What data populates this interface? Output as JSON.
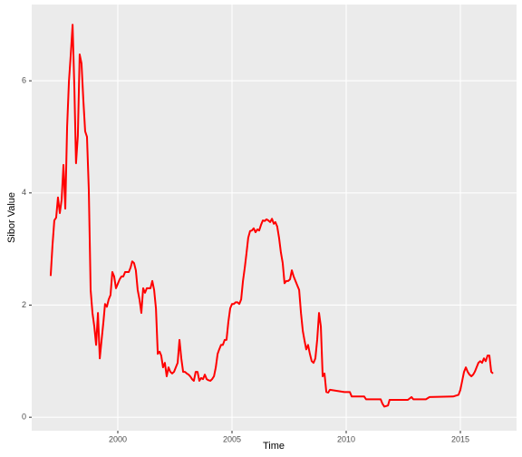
{
  "chart_data": {
    "type": "line",
    "xlabel": "Time",
    "ylabel": "Sibor Value",
    "x": [
      1997.06,
      1997.14,
      1997.22,
      1997.3,
      1997.38,
      1997.46,
      1997.54,
      1997.62,
      1997.7,
      1997.78,
      1997.86,
      1997.94,
      1998.02,
      1998.1,
      1998.17,
      1998.25,
      1998.33,
      1998.41,
      1998.49,
      1998.57,
      1998.65,
      1998.73,
      1998.81,
      1998.89,
      1998.97,
      1999.05,
      1999.13,
      1999.21,
      1999.29,
      1999.37,
      1999.44,
      1999.52,
      1999.6,
      1999.68,
      1999.76,
      1999.84,
      1999.92,
      2000.0,
      2000.08,
      2000.16,
      2000.24,
      2000.32,
      2000.4,
      2000.48,
      2000.56,
      2000.63,
      2000.71,
      2000.79,
      2000.87,
      2000.95,
      2001.03,
      2001.11,
      2001.19,
      2001.27,
      2001.35,
      2001.43,
      2001.51,
      2001.59,
      2001.67,
      2001.75,
      2001.83,
      2001.9,
      2001.98,
      2002.06,
      2002.14,
      2002.22,
      2002.3,
      2002.38,
      2002.46,
      2002.54,
      2002.62,
      2002.7,
      2002.78,
      2002.86,
      2002.94,
      2003.02,
      2003.1,
      2003.17,
      2003.25,
      2003.33,
      2003.41,
      2003.49,
      2003.57,
      2003.65,
      2003.73,
      2003.81,
      2003.89,
      2003.97,
      2004.05,
      2004.13,
      2004.21,
      2004.29,
      2004.37,
      2004.44,
      2004.52,
      2004.6,
      2004.68,
      2004.76,
      2004.84,
      2004.92,
      2005.0,
      2005.08,
      2005.16,
      2005.24,
      2005.32,
      2005.4,
      2005.48,
      2005.56,
      2005.63,
      2005.71,
      2005.79,
      2005.87,
      2005.95,
      2006.03,
      2006.11,
      2006.19,
      2006.27,
      2006.35,
      2006.43,
      2006.51,
      2006.59,
      2006.67,
      2006.75,
      2006.83,
      2006.9,
      2006.98,
      2007.06,
      2007.14,
      2007.22,
      2007.3,
      2007.38,
      2007.46,
      2007.54,
      2007.62,
      2007.7,
      2007.78,
      2007.86,
      2007.94,
      2008.02,
      2008.1,
      2008.17,
      2008.25,
      2008.33,
      2008.41,
      2008.49,
      2008.57,
      2008.65,
      2008.73,
      2008.81,
      2008.89,
      2008.97,
      2009.05,
      2009.13,
      2009.21,
      2009.29,
      2009.92,
      2010.16,
      2010.24,
      2010.79,
      2010.87,
      2011.51,
      2011.59,
      2011.67,
      2011.83,
      2011.9,
      2012.7,
      2012.86,
      2012.94,
      2013.49,
      2013.65,
      2014.68,
      2014.92,
      2015.0,
      2015.08,
      2015.16,
      2015.24,
      2015.32,
      2015.4,
      2015.48,
      2015.56,
      2015.63,
      2015.71,
      2015.79,
      2015.87,
      2015.95,
      2016.03,
      2016.11,
      2016.19,
      2016.27,
      2016.35,
      2016.43
    ],
    "series": [
      {
        "name": "Sibor Value",
        "color": "#ff0000",
        "values": [
          2.52,
          3.07,
          3.51,
          3.56,
          3.92,
          3.64,
          3.88,
          4.5,
          3.72,
          5.18,
          5.99,
          6.47,
          7.0,
          5.83,
          4.53,
          5.02,
          6.47,
          6.31,
          5.66,
          5.1,
          5.0,
          4.05,
          2.27,
          1.86,
          1.62,
          1.29,
          1.86,
          1.05,
          1.38,
          1.7,
          2.02,
          1.97,
          2.1,
          2.18,
          2.59,
          2.51,
          2.3,
          2.38,
          2.46,
          2.51,
          2.51,
          2.59,
          2.59,
          2.59,
          2.67,
          2.78,
          2.75,
          2.62,
          2.27,
          2.1,
          1.86,
          2.3,
          2.22,
          2.3,
          2.3,
          2.3,
          2.43,
          2.27,
          1.94,
          1.13,
          1.17,
          1.1,
          0.89,
          0.97,
          0.73,
          0.89,
          0.81,
          0.78,
          0.81,
          0.89,
          0.97,
          1.38,
          1.05,
          0.81,
          0.81,
          0.78,
          0.76,
          0.73,
          0.68,
          0.65,
          0.81,
          0.81,
          0.65,
          0.7,
          0.68,
          0.76,
          0.68,
          0.66,
          0.65,
          0.68,
          0.73,
          0.89,
          1.13,
          1.21,
          1.29,
          1.29,
          1.38,
          1.38,
          1.7,
          1.94,
          2.02,
          2.02,
          2.05,
          2.05,
          2.02,
          2.1,
          2.43,
          2.67,
          2.91,
          3.2,
          3.32,
          3.33,
          3.37,
          3.3,
          3.35,
          3.33,
          3.43,
          3.51,
          3.5,
          3.53,
          3.51,
          3.48,
          3.54,
          3.45,
          3.48,
          3.4,
          3.2,
          2.94,
          2.75,
          2.39,
          2.43,
          2.43,
          2.46,
          2.62,
          2.51,
          2.43,
          2.35,
          2.27,
          1.86,
          1.54,
          1.38,
          1.21,
          1.29,
          1.13,
          1.0,
          0.97,
          1.05,
          1.38,
          1.86,
          1.62,
          0.73,
          0.78,
          0.45,
          0.44,
          0.49,
          0.45,
          0.45,
          0.37,
          0.37,
          0.32,
          0.32,
          0.24,
          0.19,
          0.21,
          0.31,
          0.31,
          0.36,
          0.32,
          0.32,
          0.36,
          0.37,
          0.4,
          0.49,
          0.65,
          0.81,
          0.89,
          0.81,
          0.76,
          0.73,
          0.76,
          0.81,
          0.89,
          0.97,
          1.0,
          0.97,
          1.05,
          1.0,
          1.1,
          1.1,
          0.81,
          0.78
        ]
      }
    ],
    "xlim": [
      1996.23,
      2017.46
    ],
    "xticks": [
      2000,
      2005,
      2010,
      2015
    ],
    "ylim": [
      -0.24,
      7.36
    ],
    "yticks": [
      0,
      2,
      4,
      6
    ],
    "grid": true,
    "background": "#ebebeb"
  }
}
